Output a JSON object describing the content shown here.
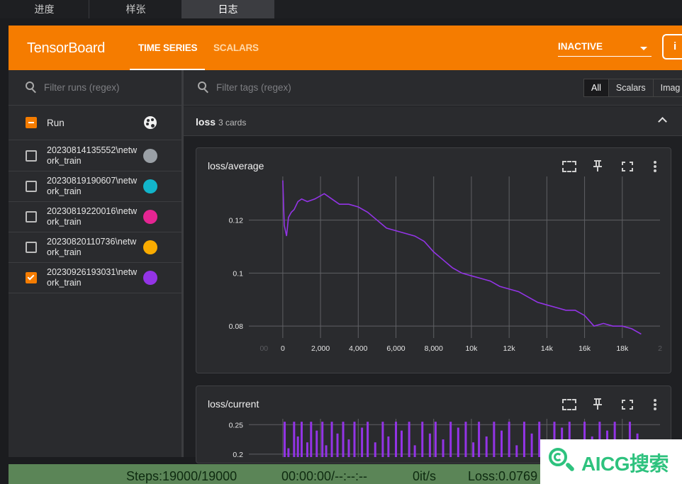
{
  "top_tabs": [
    "进度",
    "样张",
    "日志"
  ],
  "header": {
    "logo": "TensorBoard",
    "tabs": [
      "TIME SERIES",
      "SCALARS"
    ],
    "status": "INACTIVE",
    "info_glyph": "i"
  },
  "sidebar": {
    "filter_placeholder": "Filter runs (regex)",
    "runs_label": "Run",
    "runs": [
      {
        "name": "20230814135552\\network_train",
        "color": "#9aa0a6",
        "checked": false
      },
      {
        "name": "20230819190607\\network_train",
        "color": "#12b5cb",
        "checked": false
      },
      {
        "name": "20230819220016\\network_train",
        "color": "#e52592",
        "checked": false
      },
      {
        "name": "20230820110736\\network_train",
        "color": "#f9ab00",
        "checked": false
      },
      {
        "name": "20230926193031\\network_train",
        "color": "#9334e6",
        "checked": true
      }
    ]
  },
  "main": {
    "filter_placeholder": "Filter tags (regex)",
    "type_buttons": [
      "All",
      "Scalars",
      "Imag"
    ],
    "group": {
      "title": "loss",
      "count": "3 cards"
    }
  },
  "cards": [
    {
      "title": "loss/average"
    },
    {
      "title": "loss/current"
    }
  ],
  "chart_data": [
    {
      "type": "line",
      "title": "loss/average",
      "xlabel": "",
      "ylabel": "",
      "x_ticks": [
        "00",
        "0",
        "2,000",
        "4,000",
        "6,000",
        "8,000",
        "10k",
        "12k",
        "14k",
        "16k",
        "18k",
        "2"
      ],
      "y_ticks": [
        "0.12",
        "0.1",
        "0.08"
      ],
      "xlim": [
        -1800,
        20000
      ],
      "ylim": [
        0.0755,
        0.1365
      ],
      "grid": true,
      "series": [
        {
          "color": "#9334e6",
          "x": [
            0,
            80,
            200,
            300,
            450,
            600,
            800,
            1000,
            1300,
            1700,
            2200,
            2600,
            3000,
            3500,
            4000,
            4500,
            5000,
            5500,
            6000,
            6500,
            7000,
            7500,
            8000,
            8500,
            9000,
            9500,
            10000,
            10500,
            11000,
            11500,
            12000,
            12500,
            13000,
            13500,
            14000,
            14500,
            15000,
            15500,
            16000,
            16500,
            17000,
            17500,
            18000,
            18500,
            19000
          ],
          "y": [
            0.135,
            0.118,
            0.114,
            0.121,
            0.123,
            0.124,
            0.127,
            0.128,
            0.127,
            0.128,
            0.13,
            0.128,
            0.126,
            0.126,
            0.125,
            0.123,
            0.12,
            0.117,
            0.116,
            0.115,
            0.114,
            0.112,
            0.108,
            0.105,
            0.102,
            0.1,
            0.099,
            0.098,
            0.097,
            0.095,
            0.094,
            0.093,
            0.091,
            0.089,
            0.088,
            0.087,
            0.086,
            0.086,
            0.084,
            0.08,
            0.081,
            0.08,
            0.08,
            0.079,
            0.077
          ]
        }
      ]
    },
    {
      "type": "line",
      "title": "loss/current",
      "xlabel": "",
      "ylabel": "",
      "y_ticks": [
        "0.25",
        "0.2"
      ],
      "ylim": [
        0.195,
        0.26
      ],
      "xlim": [
        -1800,
        20000
      ],
      "grid": true,
      "series": [
        {
          "color": "#9334e6",
          "x": [
            100,
            300,
            600,
            800,
            1000,
            1300,
            1500,
            1800,
            2100,
            2300,
            2600,
            2900,
            3200,
            3500,
            3800,
            4200,
            4500,
            4900,
            5300,
            5600,
            6000,
            6300,
            6700,
            7000,
            7400,
            7800,
            8100,
            8500,
            8900,
            9300,
            9700,
            10100,
            10400,
            10800,
            11200,
            11600,
            12000,
            12400,
            12800,
            13200,
            13600,
            14000,
            14400,
            14800,
            15200,
            15600,
            16000,
            16400,
            16800,
            17200,
            17600,
            18000,
            18400,
            18800
          ],
          "y": [
            0.255,
            0.21,
            0.255,
            0.23,
            0.255,
            0.22,
            0.255,
            0.24,
            0.255,
            0.215,
            0.255,
            0.235,
            0.255,
            0.225,
            0.255,
            0.245,
            0.255,
            0.22,
            0.255,
            0.23,
            0.255,
            0.24,
            0.255,
            0.215,
            0.255,
            0.235,
            0.255,
            0.225,
            0.255,
            0.245,
            0.255,
            0.22,
            0.255,
            0.23,
            0.255,
            0.24,
            0.255,
            0.215,
            0.255,
            0.235,
            0.255,
            0.225,
            0.255,
            0.245,
            0.255,
            0.22,
            0.255,
            0.23,
            0.255,
            0.24,
            0.255,
            0.215,
            0.255,
            0.235
          ]
        }
      ]
    }
  ],
  "progress": {
    "steps": "Steps:19000/19000",
    "time": "00:00:00/--:--:--",
    "rate": "0it/s",
    "loss": "Loss:0.0769"
  },
  "watermark": {
    "text": "AICG搜索"
  },
  "icons": {
    "filter": "search-icon",
    "palette": "palette-icon",
    "collapse": "chevron-up-icon",
    "data_selection": "data-selection-icon",
    "pin": "pin-icon",
    "fullscreen": "fullscreen-icon",
    "more": "more-vert-icon"
  },
  "colors": {
    "accent": "#f57c00",
    "progress_bg": "#5b8557"
  }
}
